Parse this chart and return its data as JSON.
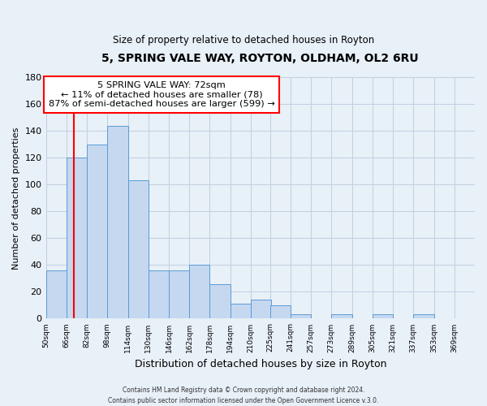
{
  "title": "5, SPRING VALE WAY, ROYTON, OLDHAM, OL2 6RU",
  "subtitle": "Size of property relative to detached houses in Royton",
  "xlabel": "Distribution of detached houses by size in Royton",
  "ylabel": "Number of detached properties",
  "bar_values": [
    36,
    120,
    130,
    144,
    103,
    36,
    36,
    40,
    26,
    11,
    14,
    10,
    3,
    0,
    3,
    0,
    3,
    0,
    3
  ],
  "bin_edges": [
    50,
    66,
    82,
    98,
    114,
    130,
    146,
    162,
    178,
    194,
    210,
    225,
    241,
    257,
    273,
    289,
    305,
    321,
    337,
    353
  ],
  "bin_labels": [
    "50sqm",
    "66sqm",
    "82sqm",
    "98sqm",
    "114sqm",
    "130sqm",
    "146sqm",
    "162sqm",
    "178sqm",
    "194sqm",
    "210sqm",
    "225sqm",
    "241sqm",
    "257sqm",
    "273sqm",
    "289sqm",
    "305sqm",
    "321sqm",
    "337sqm",
    "353sqm",
    "369sqm"
  ],
  "bar_color": "#c5d8f0",
  "bar_edge_color": "#5b9bd5",
  "ylim": [
    0,
    180
  ],
  "yticks": [
    0,
    20,
    40,
    60,
    80,
    100,
    120,
    140,
    160,
    180
  ],
  "red_line_x": 72,
  "annotation_line1": "5 SPRING VALE WAY: 72sqm",
  "annotation_line2": "← 11% of detached houses are smaller (78)",
  "annotation_line3": "87% of semi-detached houses are larger (599) →",
  "footer_line1": "Contains HM Land Registry data © Crown copyright and database right 2024.",
  "footer_line2": "Contains public sector information licensed under the Open Government Licence v.3.0.",
  "grid_color": "#c0d0e0",
  "background_color": "#e8f0f8",
  "xlim_left": 50,
  "xlim_right": 385
}
